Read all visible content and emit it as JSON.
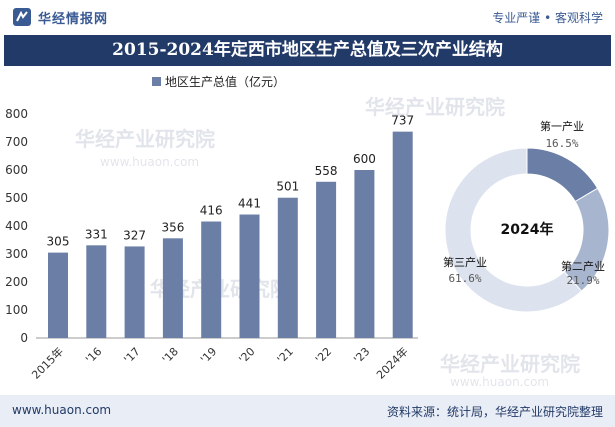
{
  "header": {
    "brand": "华经情报网",
    "tagline": "专业严谨 • 客观科学"
  },
  "title": "2015-2024年定西市地区生产总值及三次产业结构",
  "watermark": "华经产业研究院",
  "watermark_url": "www.huaon.com",
  "footer": {
    "website": "www.huaon.com",
    "source": "资料来源：统计局，华经产业研究院整理"
  },
  "colors": {
    "bar": "#6b7ea6",
    "title_bg": "#223a68",
    "donut_primary": "#6b7ea6",
    "donut_secondary": "#a8b5cf",
    "donut_tertiary": "#dde3ee"
  },
  "chart_data": [
    {
      "type": "bar",
      "legend": "地区生产总值（亿元）",
      "categories": [
        "2015年",
        "'16",
        "'17",
        "'18",
        "'19",
        "'20",
        "'21",
        "'22",
        "'23",
        "2024年"
      ],
      "series": [
        {
          "name": "地区生产总值（亿元）",
          "values": [
            305,
            331,
            327,
            356,
            416,
            441,
            501,
            558,
            600,
            737
          ]
        }
      ],
      "ylim": [
        0,
        800
      ],
      "yticks": [
        0,
        100,
        200,
        300,
        400,
        500,
        600,
        700,
        800
      ],
      "grid": false,
      "legend_position": "top"
    },
    {
      "type": "pie",
      "variant": "donut",
      "center_label": "2024年",
      "slices": [
        {
          "label": "第一产业",
          "value": 16.5,
          "value_text": "16.5%"
        },
        {
          "label": "第二产业",
          "value": 21.9,
          "value_text": "21.9%"
        },
        {
          "label": "第三产业",
          "value": 61.6,
          "value_text": "61.6%"
        }
      ]
    }
  ]
}
